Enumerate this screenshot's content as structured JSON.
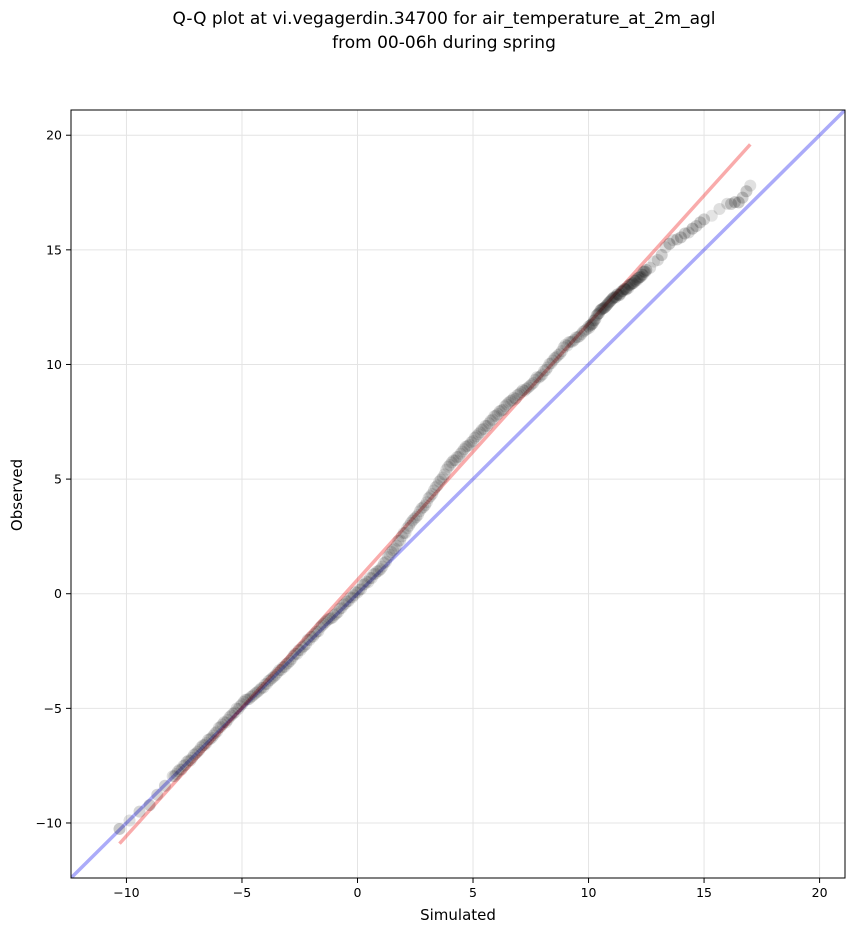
{
  "chart_data": {
    "type": "scatter",
    "title": "Q-Q plot at vi.vegagerdin.34700 for air_temperature_at_2m_agl",
    "subtitle": "from 00-06h during spring",
    "xlabel": "Simulated",
    "ylabel": "Observed",
    "xlim": [
      -12.4,
      21.1
    ],
    "ylim": [
      -12.4,
      21.1
    ],
    "xticks": [
      -10,
      -5,
      0,
      5,
      10,
      15,
      20
    ],
    "yticks": [
      -10,
      -5,
      0,
      5,
      10,
      15,
      20
    ],
    "xtick_labels": [
      "−10",
      "−5",
      "0",
      "5",
      "10",
      "15",
      "20"
    ],
    "ytick_labels": [
      "−10",
      "−5",
      "0",
      "5",
      "10",
      "15",
      "20"
    ],
    "grid": true,
    "quantile_path": [
      [
        -10.3,
        -10.2
      ],
      [
        -9.0,
        -9.2
      ],
      [
        -8.0,
        -8.0
      ],
      [
        -7.0,
        -7.0
      ],
      [
        -6.0,
        -5.9
      ],
      [
        -5.0,
        -4.8
      ],
      [
        -4.0,
        -4.0
      ],
      [
        -3.0,
        -3.0
      ],
      [
        -2.0,
        -1.9
      ],
      [
        -1.0,
        -0.9
      ],
      [
        0.0,
        0.1
      ],
      [
        1.0,
        1.1
      ],
      [
        2.0,
        2.6
      ],
      [
        3.0,
        4.0
      ],
      [
        4.0,
        5.6
      ],
      [
        5.0,
        6.7
      ],
      [
        6.0,
        7.8
      ],
      [
        7.0,
        8.7
      ],
      [
        8.0,
        9.6
      ],
      [
        9.0,
        10.8
      ],
      [
        10.0,
        11.6
      ],
      [
        10.5,
        12.3
      ],
      [
        11.0,
        12.8
      ],
      [
        11.5,
        13.2
      ],
      [
        12.0,
        13.6
      ],
      [
        12.5,
        14.1
      ],
      [
        13.0,
        14.6
      ],
      [
        13.5,
        15.3
      ],
      [
        14.0,
        15.6
      ],
      [
        14.5,
        15.9
      ],
      [
        15.0,
        16.3
      ],
      [
        16.0,
        17.0
      ],
      [
        16.5,
        17.1
      ],
      [
        17.0,
        17.8
      ]
    ],
    "identity_line": {
      "from": [
        -12.4,
        -12.4
      ],
      "to": [
        21.1,
        21.1
      ],
      "color": "#0000ee"
    },
    "fit_line": {
      "from": [
        -10.3,
        -10.9
      ],
      "to": [
        17.0,
        19.6
      ],
      "color": "#ee0000"
    },
    "point_color": "#000000",
    "sample_count_approx": 2000
  }
}
